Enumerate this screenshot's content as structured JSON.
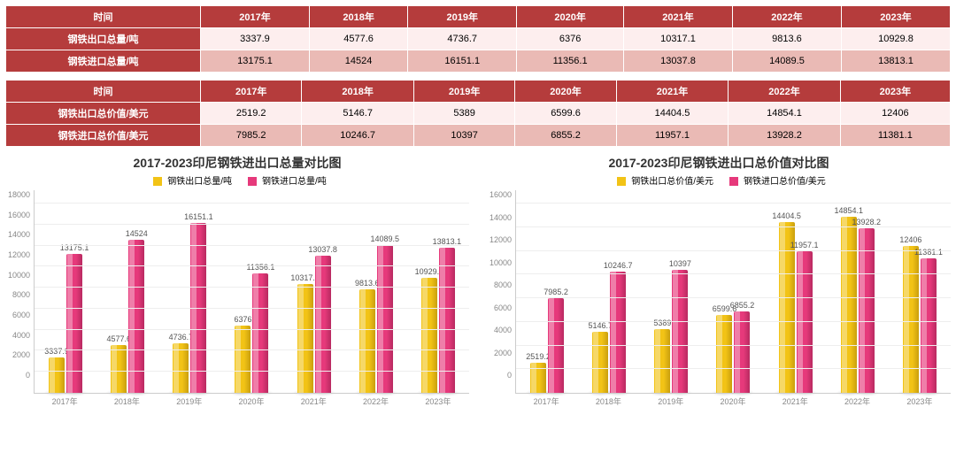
{
  "colors": {
    "header_bg": "#b53c3c",
    "header_fg": "#ffffff",
    "row_even_bg": "#fdeeee",
    "row_odd_bg": "#eabab5",
    "series_a": "#f2c316",
    "series_a_dark": "#c99f0e",
    "series_b": "#e6397b",
    "series_b_dark": "#b82a60",
    "grid": "#eeeeee",
    "axis_text": "#888888"
  },
  "years": [
    "2017年",
    "2018年",
    "2019年",
    "2020年",
    "2021年",
    "2022年",
    "2023年"
  ],
  "table1": {
    "time_label": "时间",
    "rows": [
      {
        "label": "钢铁出口总量/吨",
        "values": [
          "3337.9",
          "4577.6",
          "4736.7",
          "6376",
          "10317.1",
          "9813.6",
          "10929.8"
        ]
      },
      {
        "label": "钢铁进口总量/吨",
        "values": [
          "13175.1",
          "14524",
          "16151.1",
          "11356.1",
          "13037.8",
          "14089.5",
          "13813.1"
        ]
      }
    ]
  },
  "table2": {
    "time_label": "时间",
    "rows": [
      {
        "label": "钢铁出口总价值/美元",
        "values": [
          "2519.2",
          "5146.7",
          "5389",
          "6599.6",
          "14404.5",
          "14854.1",
          "12406"
        ]
      },
      {
        "label": "钢铁进口总价值/美元",
        "values": [
          "7985.2",
          "10246.7",
          "10397",
          "6855.2",
          "11957.1",
          "13928.2",
          "11381.1"
        ]
      }
    ]
  },
  "chart1": {
    "title": "2017-2023印尼钢铁进出口总量对比图",
    "legend": [
      "钢铁出口总量/吨",
      "钢铁进口总量/吨"
    ],
    "ymax": 18000,
    "ystep": 2000,
    "series_a": [
      3337.9,
      4577.6,
      4736.7,
      6376,
      10317.1,
      9813.6,
      10929.8
    ],
    "series_b": [
      13175.1,
      14524,
      16151.1,
      11356.1,
      13037.8,
      14089.5,
      13813.1
    ]
  },
  "chart2": {
    "title": "2017-2023印尼钢铁进出口总价值对比图",
    "legend": [
      "钢铁出口总价值/美元",
      "钢铁进口总价值/美元"
    ],
    "ymax": 16000,
    "ystep": 2000,
    "series_a": [
      2519.2,
      5146.7,
      5389,
      6599.6,
      14404.5,
      14854.1,
      12406
    ],
    "series_b": [
      7985.2,
      10246.7,
      10397,
      6855.2,
      11957.1,
      13928.2,
      11381.1
    ]
  }
}
